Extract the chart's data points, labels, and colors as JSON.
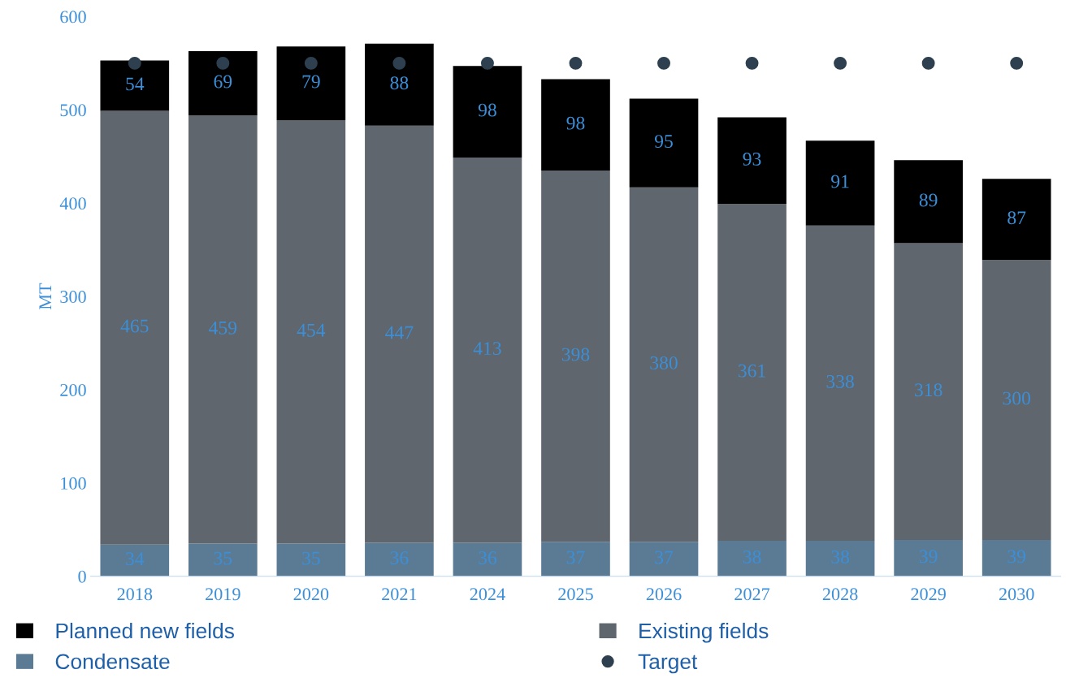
{
  "chart_data": {
    "type": "bar",
    "stacked": true,
    "ylabel": "MT",
    "categories": [
      "2018",
      "2019",
      "2020",
      "2021",
      "2024",
      "2025",
      "2026",
      "2027",
      "2028",
      "2029",
      "2030"
    ],
    "series": [
      {
        "name": "Condensate",
        "color": "#5b7b95",
        "values": [
          34,
          35,
          35,
          36,
          36,
          37,
          37,
          38,
          38,
          39,
          39
        ]
      },
      {
        "name": "Existing fields",
        "color": "#5f666d",
        "values": [
          465,
          459,
          454,
          447,
          413,
          398,
          380,
          361,
          338,
          318,
          300
        ]
      },
      {
        "name": "Planned new fields",
        "color": "#000000",
        "values": [
          54,
          69,
          79,
          88,
          98,
          98,
          95,
          93,
          91,
          89,
          87
        ]
      },
      {
        "name": "Target",
        "type": "scatter",
        "marker": "circle",
        "color": "#2e4050",
        "values": [
          550,
          550,
          550,
          550,
          550,
          550,
          550,
          550,
          550,
          550,
          550
        ],
        "value_labels": [
          null,
          null,
          null,
          null,
          null,
          null,
          null,
          null,
          null,
          null,
          null
        ]
      }
    ],
    "data_labels": true,
    "ylim": [
      0,
      600
    ],
    "yticks": [
      0,
      100,
      200,
      300,
      400,
      500,
      600
    ],
    "grid": false,
    "legend": "bottom"
  }
}
